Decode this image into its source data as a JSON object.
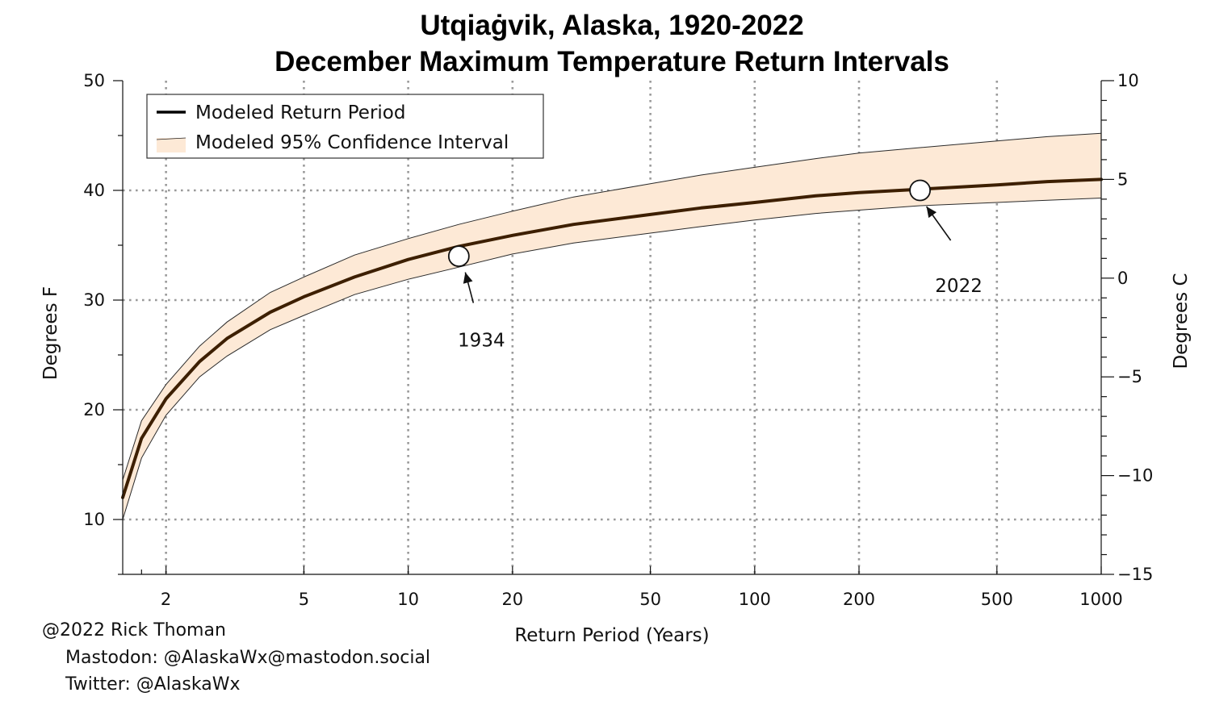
{
  "chart_data": {
    "type": "line",
    "title": "Utqiaġvik, Alaska, 1920-2022",
    "subtitle": "December Maximum Temperature Return Intervals",
    "xlabel": "Return Period (Years)",
    "ylabel": "Degrees F",
    "ylabel_right": "Degrees C",
    "x_scale": "log",
    "xlim": [
      1.5,
      1000
    ],
    "ylim": [
      5,
      50
    ],
    "ylim_right": [
      -15,
      10
    ],
    "x_ticks": [
      2,
      5,
      10,
      20,
      50,
      100,
      200,
      500,
      1000
    ],
    "x_tick_labels": [
      "2",
      "5",
      "10",
      "20",
      "50",
      "100",
      "200",
      "500",
      "1000"
    ],
    "y_ticks": [
      10,
      20,
      30,
      40,
      50
    ],
    "y_tick_labels": [
      "10",
      "20",
      "30",
      "40",
      "50"
    ],
    "y_right_ticks": [
      -15,
      -10,
      -5,
      0,
      5,
      10
    ],
    "y_right_tick_labels": [
      "−15",
      "−10",
      "−5",
      "0",
      "5",
      "10"
    ],
    "grid": true,
    "legend": {
      "placement": "top-left",
      "entries": [
        {
          "label": "Modeled Return Period",
          "kind": "line",
          "color": "#3d1f00"
        },
        {
          "label": "Modeled 95% Confidence Interval",
          "kind": "band",
          "color": "#fde9d6"
        }
      ]
    },
    "series": [
      {
        "name": "Modeled Return Period",
        "x": [
          1.5,
          1.7,
          2,
          2.5,
          3,
          4,
          5,
          7,
          10,
          14,
          20,
          30,
          50,
          70,
          100,
          150,
          200,
          300,
          500,
          700,
          1000
        ],
        "y": [
          12.0,
          17.4,
          21.0,
          24.4,
          26.5,
          28.9,
          30.3,
          32.1,
          33.7,
          34.9,
          35.9,
          36.9,
          37.8,
          38.4,
          38.9,
          39.5,
          39.8,
          40.1,
          40.5,
          40.8,
          41.0
        ],
        "color": "#3d1f00"
      },
      {
        "name": "Modeled 95% Confidence Interval",
        "x": [
          1.5,
          1.7,
          2,
          2.5,
          3,
          4,
          5,
          7,
          10,
          14,
          20,
          30,
          50,
          70,
          100,
          150,
          200,
          300,
          500,
          700,
          1000
        ],
        "upper": [
          13.6,
          19.0,
          22.3,
          25.8,
          28.0,
          30.7,
          32.1,
          34.1,
          35.6,
          36.9,
          38.1,
          39.4,
          40.6,
          41.4,
          42.1,
          42.9,
          43.4,
          43.9,
          44.5,
          44.9,
          45.2
        ],
        "lower": [
          10.0,
          15.6,
          19.5,
          23.0,
          24.9,
          27.3,
          28.6,
          30.5,
          31.9,
          33.0,
          34.2,
          35.2,
          36.1,
          36.7,
          37.3,
          37.9,
          38.2,
          38.6,
          38.9,
          39.1,
          39.3
        ],
        "color": "#fde9d6"
      }
    ],
    "annotations": [
      {
        "label": "1934",
        "x": 14,
        "y": 34
      },
      {
        "label": "2022",
        "x": 300,
        "y": 40
      }
    ]
  },
  "credits": {
    "line1": "@2022 Rick Thoman",
    "line2": "Mastodon: @AlaskaWx@mastodon.social",
    "line3": "Twitter: @AlaskaWx"
  }
}
